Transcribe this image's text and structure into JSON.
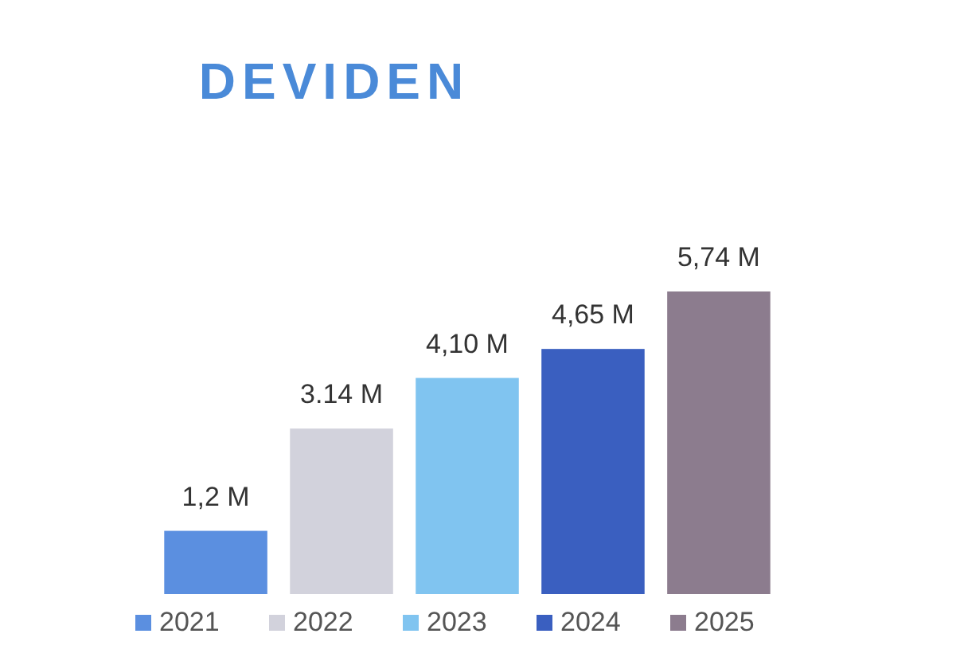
{
  "chart_data": {
    "type": "bar",
    "title": "DEVIDEN",
    "categories": [
      null
    ],
    "series": [
      {
        "name": "2021",
        "color": "#5b8fe0",
        "values": [
          1.2
        ],
        "value_labels": [
          "1,2 M"
        ]
      },
      {
        "name": "2022",
        "color": "#d2d2dc",
        "values": [
          3.14
        ],
        "value_labels": [
          "3.14 M"
        ]
      },
      {
        "name": "2023",
        "color": "#80c4f0",
        "values": [
          4.1
        ],
        "value_labels": [
          "4,10 M"
        ]
      },
      {
        "name": "2024",
        "color": "#3a5fc0",
        "values": [
          4.65
        ],
        "value_labels": [
          "4,65 M"
        ]
      },
      {
        "name": "2025",
        "color": "#8c7c8e",
        "values": [
          5.74
        ],
        "value_labels": [
          "5,74 M"
        ]
      }
    ],
    "legend": "bottom"
  }
}
